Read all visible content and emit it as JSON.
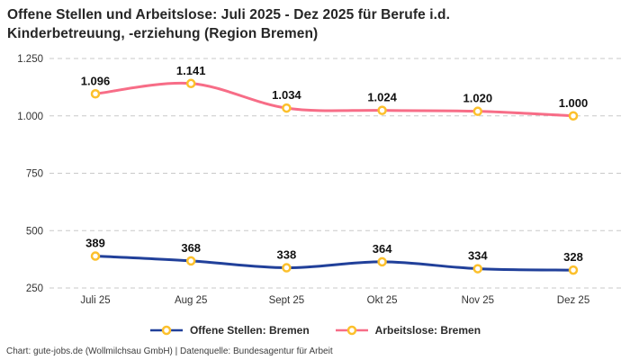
{
  "header": {
    "title_line1": "Offene Stellen und Arbeitslose: Juli 2025 - Dez 2025 für Berufe i.d.",
    "title_line2": "Kinderbetreuung, -erziehung (Region Bremen)"
  },
  "chart_data": {
    "type": "line",
    "title": "Offene Stellen und Arbeitslose: Juli 2025 - Dez 2025 für Berufe i.d. Kinderbetreuung, -erziehung (Region Bremen)",
    "categories": [
      "Juli 25",
      "Aug 25",
      "Sept 25",
      "Okt 25",
      "Nov 25",
      "Dez 25"
    ],
    "series": [
      {
        "name": "Offene Stellen: Bremen",
        "color": "#21409a",
        "values": [
          389,
          368,
          338,
          364,
          334,
          328
        ],
        "labels": [
          "389",
          "368",
          "338",
          "364",
          "334",
          "328"
        ]
      },
      {
        "name": "Arbeitslose: Bremen",
        "color": "#f76d87",
        "values": [
          1096,
          1141,
          1034,
          1024,
          1020,
          1000
        ],
        "labels": [
          "1.096",
          "1.141",
          "1.034",
          "1.024",
          "1.020",
          "1.000"
        ]
      }
    ],
    "marker_color": "#fcc02c",
    "marker_fill": "#ffffff",
    "ylim": [
      250,
      1250
    ],
    "yticks": {
      "values": [
        1250,
        1000,
        750,
        500,
        250
      ],
      "labels": [
        "1.250",
        "1.000",
        "750",
        "500",
        "250"
      ]
    },
    "grid": "horizontal-dashed",
    "gridline_color": "#c9c9c9",
    "label_color": "#111111",
    "tick_color": "#333333",
    "legend_position": "bottom"
  },
  "footer": {
    "credit": "Chart: gute-jobs.de (Wollmilchsau GmbH) | Datenquelle: Bundesagentur für Arbeit"
  }
}
